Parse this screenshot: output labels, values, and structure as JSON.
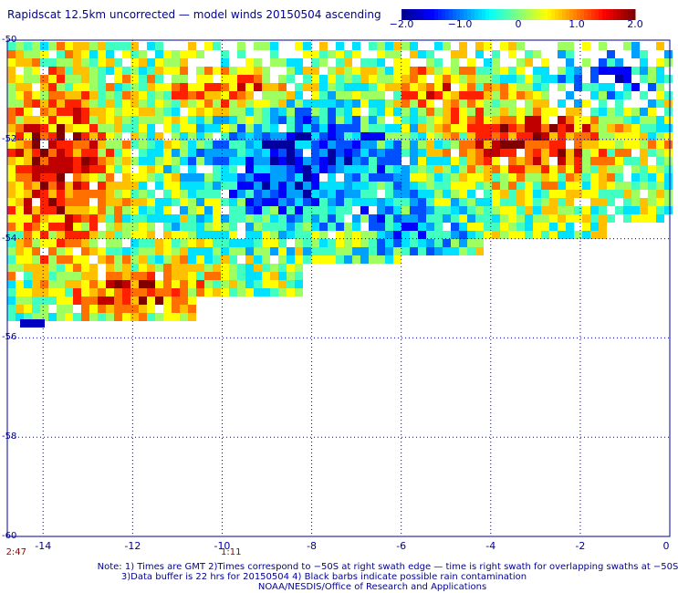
{
  "title": "Rapidscat 12.5km uncorrected — model winds 20150504 ascending",
  "colorbar": {
    "ticks": [
      {
        "label": "−2.0",
        "value": -2.0
      },
      {
        "label": "−1.0",
        "value": -1.0
      },
      {
        "label": "0",
        "value": 0.0
      },
      {
        "label": "1.0",
        "value": 1.0
      },
      {
        "label": "2.0",
        "value": 2.0
      }
    ],
    "range": [
      -2.0,
      2.0
    ],
    "colors": [
      "#00008f",
      "#0000ff",
      "#0080ff",
      "#00ffff",
      "#80ff80",
      "#ffff00",
      "#ff8000",
      "#ff0000",
      "#800000"
    ]
  },
  "map": {
    "lat_ticks": [
      "-50",
      "-52",
      "-54",
      "-56",
      "-58",
      "-60"
    ],
    "lon_ticks": [
      "-14",
      "-12",
      "-10",
      "-8",
      "-6",
      "-4",
      "-2",
      "0"
    ],
    "lat_range": [
      -60,
      -50
    ],
    "lon_range": [
      -14.8,
      0
    ],
    "grid": true,
    "gridline_color": "#00009a"
  },
  "times": [
    {
      "label": "2:47",
      "lon": -14.6
    },
    {
      "label": "1:11",
      "lon": -9.8
    }
  ],
  "notes": [
    "Note: 1) Times are GMT 2)Times correspond to −50S at right swath edge — time is right swath for overlapping swaths at −50S",
    "3)Data buffer is 22 hrs for 20150504 4) Black barbs indicate possible rain contamination",
    "NOAA/NESDIS/Office of Research and Applications"
  ]
}
